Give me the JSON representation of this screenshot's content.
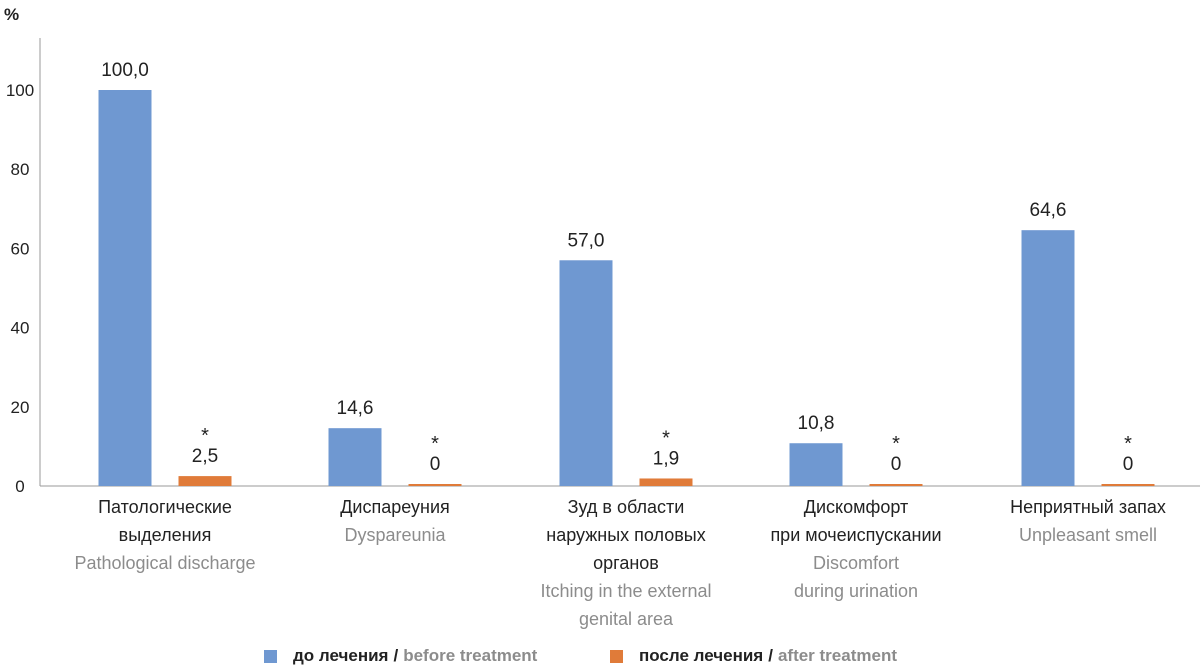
{
  "chart_data": {
    "type": "bar",
    "ylabel": "%",
    "ylim": [
      0,
      110
    ],
    "yticks": [
      0,
      20,
      40,
      60,
      80,
      100
    ],
    "grid": false,
    "legend_placement": "bottom",
    "categories": [
      {
        "ru": [
          "Патологические",
          "выделения"
        ],
        "en": [
          "Pathological discharge"
        ]
      },
      {
        "ru": [
          "Диспареуния"
        ],
        "en": [
          "Dyspareunia"
        ]
      },
      {
        "ru": [
          "Зуд в области",
          "наружных половых",
          "органов"
        ],
        "en": [
          "Itching in the external",
          "genital area"
        ]
      },
      {
        "ru": [
          "Дискомфорт",
          "при мочеиспускании"
        ],
        "en": [
          "Discomfort",
          "during urination"
        ]
      },
      {
        "ru": [
          "Неприятный запах"
        ],
        "en": [
          "Unpleasant smell"
        ]
      }
    ],
    "series": [
      {
        "name_ru": "до лечения",
        "name_en": "before treatment",
        "color": "#6f98d1",
        "values": [
          100.0,
          14.6,
          57.0,
          10.8,
          64.6
        ],
        "labels": [
          "100,0",
          "14,6",
          "57,0",
          "10,8",
          "64,6"
        ],
        "marks": [
          "",
          "",
          "",
          "",
          ""
        ]
      },
      {
        "name_ru": "после лечения",
        "name_en": "after treatment",
        "color": "#e07b39",
        "values": [
          2.5,
          0,
          1.9,
          0,
          0
        ],
        "labels": [
          "2,5",
          "0",
          "1,9",
          "0",
          "0"
        ],
        "marks": [
          "*",
          "*",
          "*",
          "*",
          "*"
        ]
      }
    ]
  },
  "colors": {
    "axis": "#9a9a9a",
    "text_ru": "#222222",
    "text_en": "#8c8c8c"
  },
  "legend": {
    "separator": "/"
  }
}
